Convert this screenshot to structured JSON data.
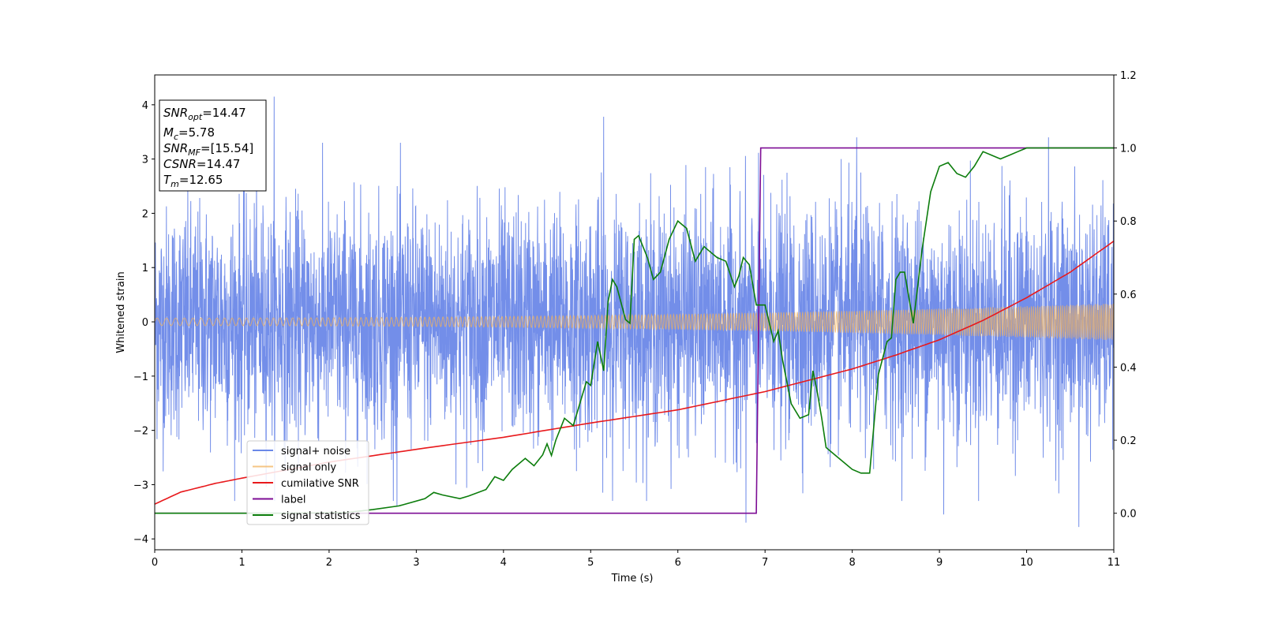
{
  "chart_data": {
    "type": "line",
    "xlabel": "Time (s)",
    "ylabel": "Whitened strain",
    "xlim": [
      0,
      11
    ],
    "ylim": [
      -4.2,
      4.55
    ],
    "y2lim": [
      -0.1,
      1.2
    ],
    "grid": false,
    "legend_position": "lower-left",
    "x_ticks": [
      "0",
      "1",
      "2",
      "3",
      "4",
      "5",
      "6",
      "7",
      "8",
      "9",
      "10",
      "11"
    ],
    "y_ticks": [
      "−4",
      "−3",
      "−2",
      "−1",
      "0",
      "1",
      "2",
      "3",
      "4"
    ],
    "y2_ticks": [
      "0.0",
      "0.2",
      "0.4",
      "0.6",
      "0.8",
      "1.0",
      "1.2"
    ],
    "info_box": [
      {
        "base": "SNR",
        "sub": "opt",
        "value": "=14.47"
      },
      {
        "base": "M",
        "sub": "c",
        "value": "=5.78"
      },
      {
        "base": "SNR",
        "sub": "MF",
        "value": "=[15.54]"
      },
      {
        "base": "CSNR",
        "sub": "",
        "value": "=14.47"
      },
      {
        "base": "T",
        "sub": "m",
        "value": "=12.65"
      }
    ],
    "series": [
      {
        "name": "signal+ noise",
        "color": "#6b88e8",
        "axis": "left",
        "kind": "noise",
        "noise_envelope": 1.05,
        "x_range": [
          0,
          11
        ],
        "notable_peaks": [
          [
            1.37,
            4.15
          ],
          [
            5.15,
            3.78
          ],
          [
            8.05,
            3.4
          ],
          [
            10.25,
            3.4
          ],
          [
            6.78,
            -3.7
          ],
          [
            10.6,
            -3.78
          ],
          [
            9.05,
            -3.55
          ],
          [
            2.78,
            -3.4
          ]
        ]
      },
      {
        "name": "signal only",
        "color": "#f2b25c",
        "axis": "left",
        "kind": "chirp",
        "amplitude_start": 0.07,
        "amplitude_end": 0.34,
        "x_range": [
          0,
          11
        ]
      },
      {
        "name": "cumilative SNR",
        "color": "#e8191c",
        "axis": "right",
        "x": [
          0,
          0.3,
          0.7,
          1,
          2,
          3,
          4,
          5,
          6,
          7,
          8,
          8.5,
          9,
          9.5,
          10,
          10.5,
          11
        ],
        "y": [
          0.025,
          0.058,
          0.082,
          0.096,
          0.14,
          0.175,
          0.208,
          0.247,
          0.283,
          0.333,
          0.395,
          0.433,
          0.475,
          0.528,
          0.59,
          0.66,
          0.745
        ]
      },
      {
        "name": "label",
        "color": "#7d0d95",
        "axis": "right",
        "x": [
          0,
          6.9,
          6.95,
          11
        ],
        "y": [
          0,
          0,
          1,
          1
        ]
      },
      {
        "name": "signal statistics",
        "color": "#0c7d0c",
        "axis": "right",
        "x": [
          0,
          1.5,
          2.2,
          2.5,
          2.8,
          3.1,
          3.2,
          3.3,
          3.5,
          3.6,
          3.8,
          3.9,
          4.0,
          4.1,
          4.25,
          4.35,
          4.45,
          4.5,
          4.55,
          4.6,
          4.7,
          4.8,
          4.95,
          5.0,
          5.08,
          5.15,
          5.2,
          5.25,
          5.3,
          5.4,
          5.45,
          5.5,
          5.55,
          5.65,
          5.72,
          5.8,
          5.9,
          6.0,
          6.05,
          6.1,
          6.2,
          6.3,
          6.35,
          6.45,
          6.55,
          6.65,
          6.7,
          6.75,
          6.82,
          6.9,
          6.97,
          7.0,
          7.1,
          7.15,
          7.2,
          7.3,
          7.4,
          7.5,
          7.55,
          7.6,
          7.65,
          7.7,
          7.8,
          7.9,
          8.0,
          8.1,
          8.2,
          8.3,
          8.4,
          8.45,
          8.5,
          8.55,
          8.6,
          8.7,
          8.8,
          8.9,
          9.0,
          9.1,
          9.2,
          9.3,
          9.4,
          9.5,
          9.6,
          9.7,
          9.8,
          9.9,
          10.0,
          10.2,
          10.5,
          11.0
        ],
        "y": [
          0.0,
          0.0,
          0.002,
          0.01,
          0.02,
          0.04,
          0.057,
          0.05,
          0.04,
          0.047,
          0.065,
          0.1,
          0.09,
          0.12,
          0.15,
          0.13,
          0.16,
          0.19,
          0.158,
          0.2,
          0.26,
          0.24,
          0.36,
          0.35,
          0.47,
          0.39,
          0.58,
          0.64,
          0.62,
          0.53,
          0.52,
          0.75,
          0.76,
          0.7,
          0.64,
          0.66,
          0.75,
          0.8,
          0.79,
          0.78,
          0.69,
          0.73,
          0.72,
          0.7,
          0.69,
          0.62,
          0.65,
          0.7,
          0.68,
          0.57,
          0.57,
          0.57,
          0.47,
          0.5,
          0.42,
          0.3,
          0.26,
          0.27,
          0.39,
          0.33,
          0.26,
          0.18,
          0.16,
          0.14,
          0.12,
          0.11,
          0.11,
          0.38,
          0.47,
          0.48,
          0.64,
          0.66,
          0.66,
          0.52,
          0.72,
          0.88,
          0.95,
          0.96,
          0.93,
          0.92,
          0.95,
          0.99,
          0.98,
          0.97,
          0.98,
          0.99,
          1.0,
          1.0,
          1.0,
          1.0
        ]
      }
    ]
  }
}
